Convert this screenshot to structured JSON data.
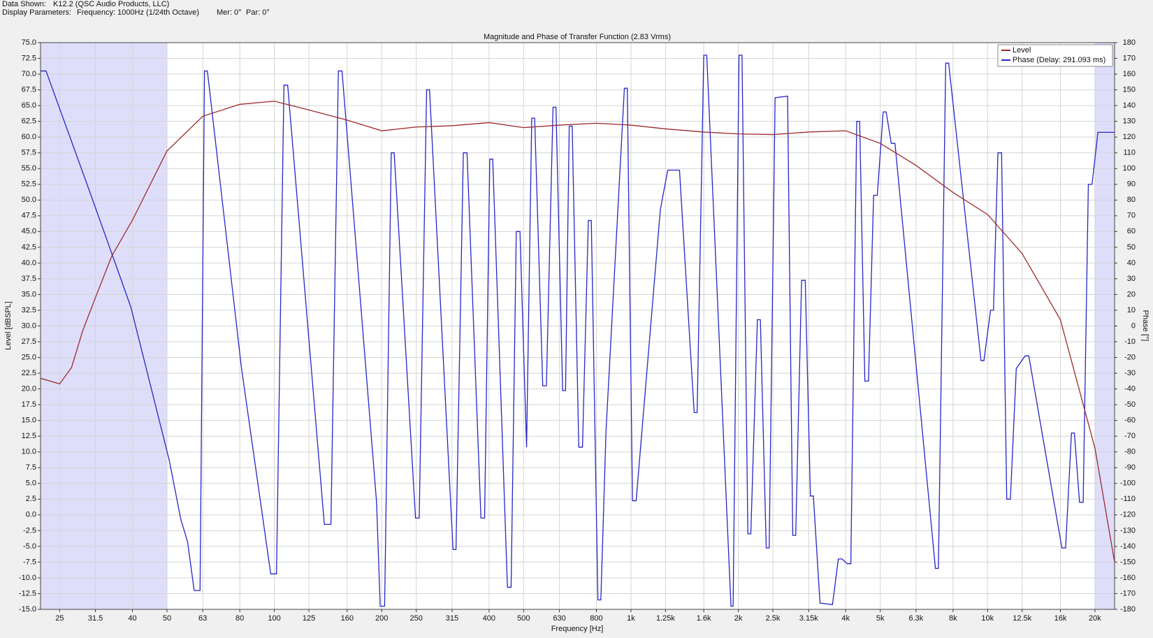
{
  "header": {
    "data_shown_label": "Data Shown:",
    "data_shown": "K12.2 (QSC Audio Products, LLC)",
    "params_label": "Display Parameters:",
    "frequency": "Frequency: 1000Hz (1/24th Octave)",
    "mer": "Mer: 0°",
    "par": "Par: 0°"
  },
  "chart_data": {
    "type": "line",
    "title": "Magnitude and Phase of Transfer Function (2.83 Vrms)",
    "x_label": "Frequency [Hz]",
    "y_label": "Level [dBSPL]",
    "y2_label": "Phase [°]",
    "xscale": "log",
    "grid": true,
    "legend": "upper right",
    "highlight_color": "#d8d8fa",
    "highlight_ranges": [
      [
        22.1,
        50
      ],
      [
        20000,
        22700
      ]
    ],
    "xlim": [
      22.1,
      22700
    ],
    "xticks": [
      25,
      31.5,
      40,
      50,
      63,
      80,
      100,
      125,
      160,
      200,
      250,
      315,
      400,
      500,
      630,
      800,
      {
        "value": 1000,
        "label": "1k"
      },
      {
        "value": 1250,
        "label": "1.25k"
      },
      {
        "value": 1600,
        "label": "1.6k"
      },
      {
        "value": 2000,
        "label": "2k"
      },
      {
        "value": 2500,
        "label": "2.5k"
      },
      {
        "value": 3150,
        "label": "3.15k"
      },
      {
        "value": 4000,
        "label": "4k"
      },
      {
        "value": 5000,
        "label": "5k"
      },
      {
        "value": 6300,
        "label": "6.3k"
      },
      {
        "value": 8000,
        "label": "8k"
      },
      {
        "value": 10000,
        "label": "10k"
      },
      {
        "value": 12500,
        "label": "12.5k"
      },
      {
        "value": 16000,
        "label": "16k"
      },
      {
        "value": 20000,
        "label": "20k"
      }
    ],
    "ylim": [
      -15,
      75
    ],
    "yticks": [
      {
        "value": -15,
        "label": "-15.0"
      },
      -12.5,
      {
        "value": -10,
        "label": "-10.0"
      },
      -7.5,
      {
        "value": -5,
        "label": "-5.0"
      },
      -2.5,
      {
        "value": 0,
        "label": "0.0"
      },
      2.5,
      {
        "value": 5,
        "label": "5.0"
      },
      7.5,
      {
        "value": 10,
        "label": "10.0"
      },
      12.5,
      {
        "value": 15,
        "label": "15.0"
      },
      17.5,
      {
        "value": 20,
        "label": "20.0"
      },
      22.5,
      {
        "value": 25,
        "label": "25.0"
      },
      27.5,
      {
        "value": 30,
        "label": "30.0"
      },
      32.5,
      {
        "value": 35,
        "label": "35.0"
      },
      37.5,
      {
        "value": 40,
        "label": "40.0"
      },
      42.5,
      {
        "value": 45,
        "label": "45.0"
      },
      47.5,
      {
        "value": 50,
        "label": "50.0"
      },
      52.5,
      {
        "value": 55,
        "label": "55.0"
      },
      57.5,
      {
        "value": 60,
        "label": "60.0"
      },
      62.5,
      {
        "value": 65,
        "label": "65.0"
      },
      67.5,
      {
        "value": 70,
        "label": "70.0"
      },
      72.5,
      {
        "value": 75,
        "label": "75.0"
      }
    ],
    "y2lim": [
      -180,
      180
    ],
    "y2ticks": [
      -180,
      -170,
      -160,
      -150,
      -140,
      -130,
      -120,
      -110,
      -100,
      -90,
      -80,
      -70,
      -60,
      -50,
      -40,
      -30,
      -20,
      -10,
      0,
      10,
      20,
      30,
      40,
      50,
      60,
      70,
      80,
      90,
      100,
      110,
      120,
      130,
      140,
      150,
      160,
      170,
      180
    ],
    "series": [
      {
        "name": "Level",
        "color": "#9c2a2a",
        "x": [
          22.1,
          25,
          27,
          29,
          31.5,
          35,
          40,
          50,
          63,
          80,
          100,
          125,
          160,
          200,
          250,
          315,
          400,
          500,
          630,
          800,
          1000,
          1250,
          1600,
          2000,
          2500,
          3150,
          4000,
          5000,
          6300,
          8000,
          10000,
          12500,
          16000,
          20000,
          22700
        ],
        "values": [
          21.7,
          20.8,
          23.4,
          29.2,
          34.5,
          41.1,
          46.8,
          57.8,
          63.3,
          65.2,
          65.7,
          64.3,
          62.7,
          61,
          61.6,
          61.8,
          62.3,
          61.5,
          61.9,
          62.2,
          61.9,
          61.3,
          60.8,
          60.5,
          60.4,
          60.8,
          61,
          59,
          55.5,
          51.2,
          47.7,
          41.5,
          31,
          10.6,
          -7.5
        ]
      },
      {
        "name": "Phase (Delay: 291.093 ms)",
        "color": "#2525c8",
        "axis": "y2",
        "x": [
          22.1,
          22.9,
          30.4,
          39.6,
          50.7,
          54.7,
          57.1,
          59.6,
          61.9,
          63.7,
          64.9,
          80.8,
          97.7,
          101.4,
          106.4,
          109,
          138.1,
          144.1,
          151.2,
          154.8,
          193.5,
          198.1,
          203.8,
          212.7,
          216.8,
          248.8,
          254.8,
          267.3,
          272.4,
          317,
          323.1,
          338.8,
          347,
          379.6,
          388.7,
          401.9,
          409.6,
          450.4,
          461.2,
          476.9,
          488.4,
          509.7,
          526.9,
          537,
          565.7,
          579.3,
          604.6,
          616.2,
          643.2,
          655.5,
          671.3,
          684.2,
          714,
          731.2,
          759.5,
          774.1,
          807.8,
          823.3,
          851.1,
          958.3,
          976.6,
          1009.7,
          1034,
          1209,
          1268,
          1368,
          1504,
          1533,
          1600,
          1631,
          1907,
          1934,
          2009,
          2048,
          2127,
          2168,
          2262,
          2306,
          2395,
          2441,
          2536,
          2749,
          2842,
          2897,
          3009,
          3081,
          3185,
          3247,
          3389,
          3673,
          3815,
          3907,
          4038,
          4135,
          4296,
          4378,
          4527,
          4634,
          4791,
          4906,
          5096,
          5194,
          5370,
          5499,
          7140,
          7278,
          7630,
          7776,
          9583,
          9766,
          10192,
          10387,
          10688,
          10945,
          11315,
          11586,
          12035,
          12742,
          13048,
          16156,
          16547,
          17185,
          17514,
          18105,
          18535,
          19165,
          19625,
          20388,
          22740
        ],
        "values": [
          162,
          162,
          85,
          12,
          -85,
          -123,
          -137,
          -168,
          -168,
          162,
          162,
          -26,
          -157.5,
          -157.5,
          153,
          153,
          -126,
          -126,
          162,
          162,
          -112,
          -178,
          -178,
          110,
          110,
          -122,
          -122,
          150,
          150,
          -142,
          -142,
          110,
          110,
          -122,
          -122,
          106,
          106,
          -166,
          -166,
          60,
          60,
          -77,
          132,
          132,
          -38,
          -38,
          139,
          139,
          -41,
          -41,
          127,
          127,
          -77,
          -77,
          67,
          67,
          -174,
          -174,
          -67,
          151,
          151,
          -111,
          -111,
          74,
          99,
          99,
          -55,
          -55,
          172,
          172,
          -178,
          -178,
          172,
          172,
          -132,
          -132,
          4,
          4,
          -141,
          -141,
          145,
          146,
          -133,
          -133,
          29,
          29,
          -108,
          -108,
          -176,
          -177,
          -148,
          -148,
          -151,
          -151,
          130,
          130,
          -35,
          -35,
          83,
          83,
          136,
          136,
          116,
          116,
          -154,
          -154,
          167,
          167,
          -22,
          -22,
          10,
          10,
          110,
          110,
          -110,
          -110,
          -27,
          -19,
          -19,
          -141,
          -141,
          -68,
          -68,
          -112,
          -112,
          90,
          90,
          123,
          123
        ]
      }
    ]
  }
}
